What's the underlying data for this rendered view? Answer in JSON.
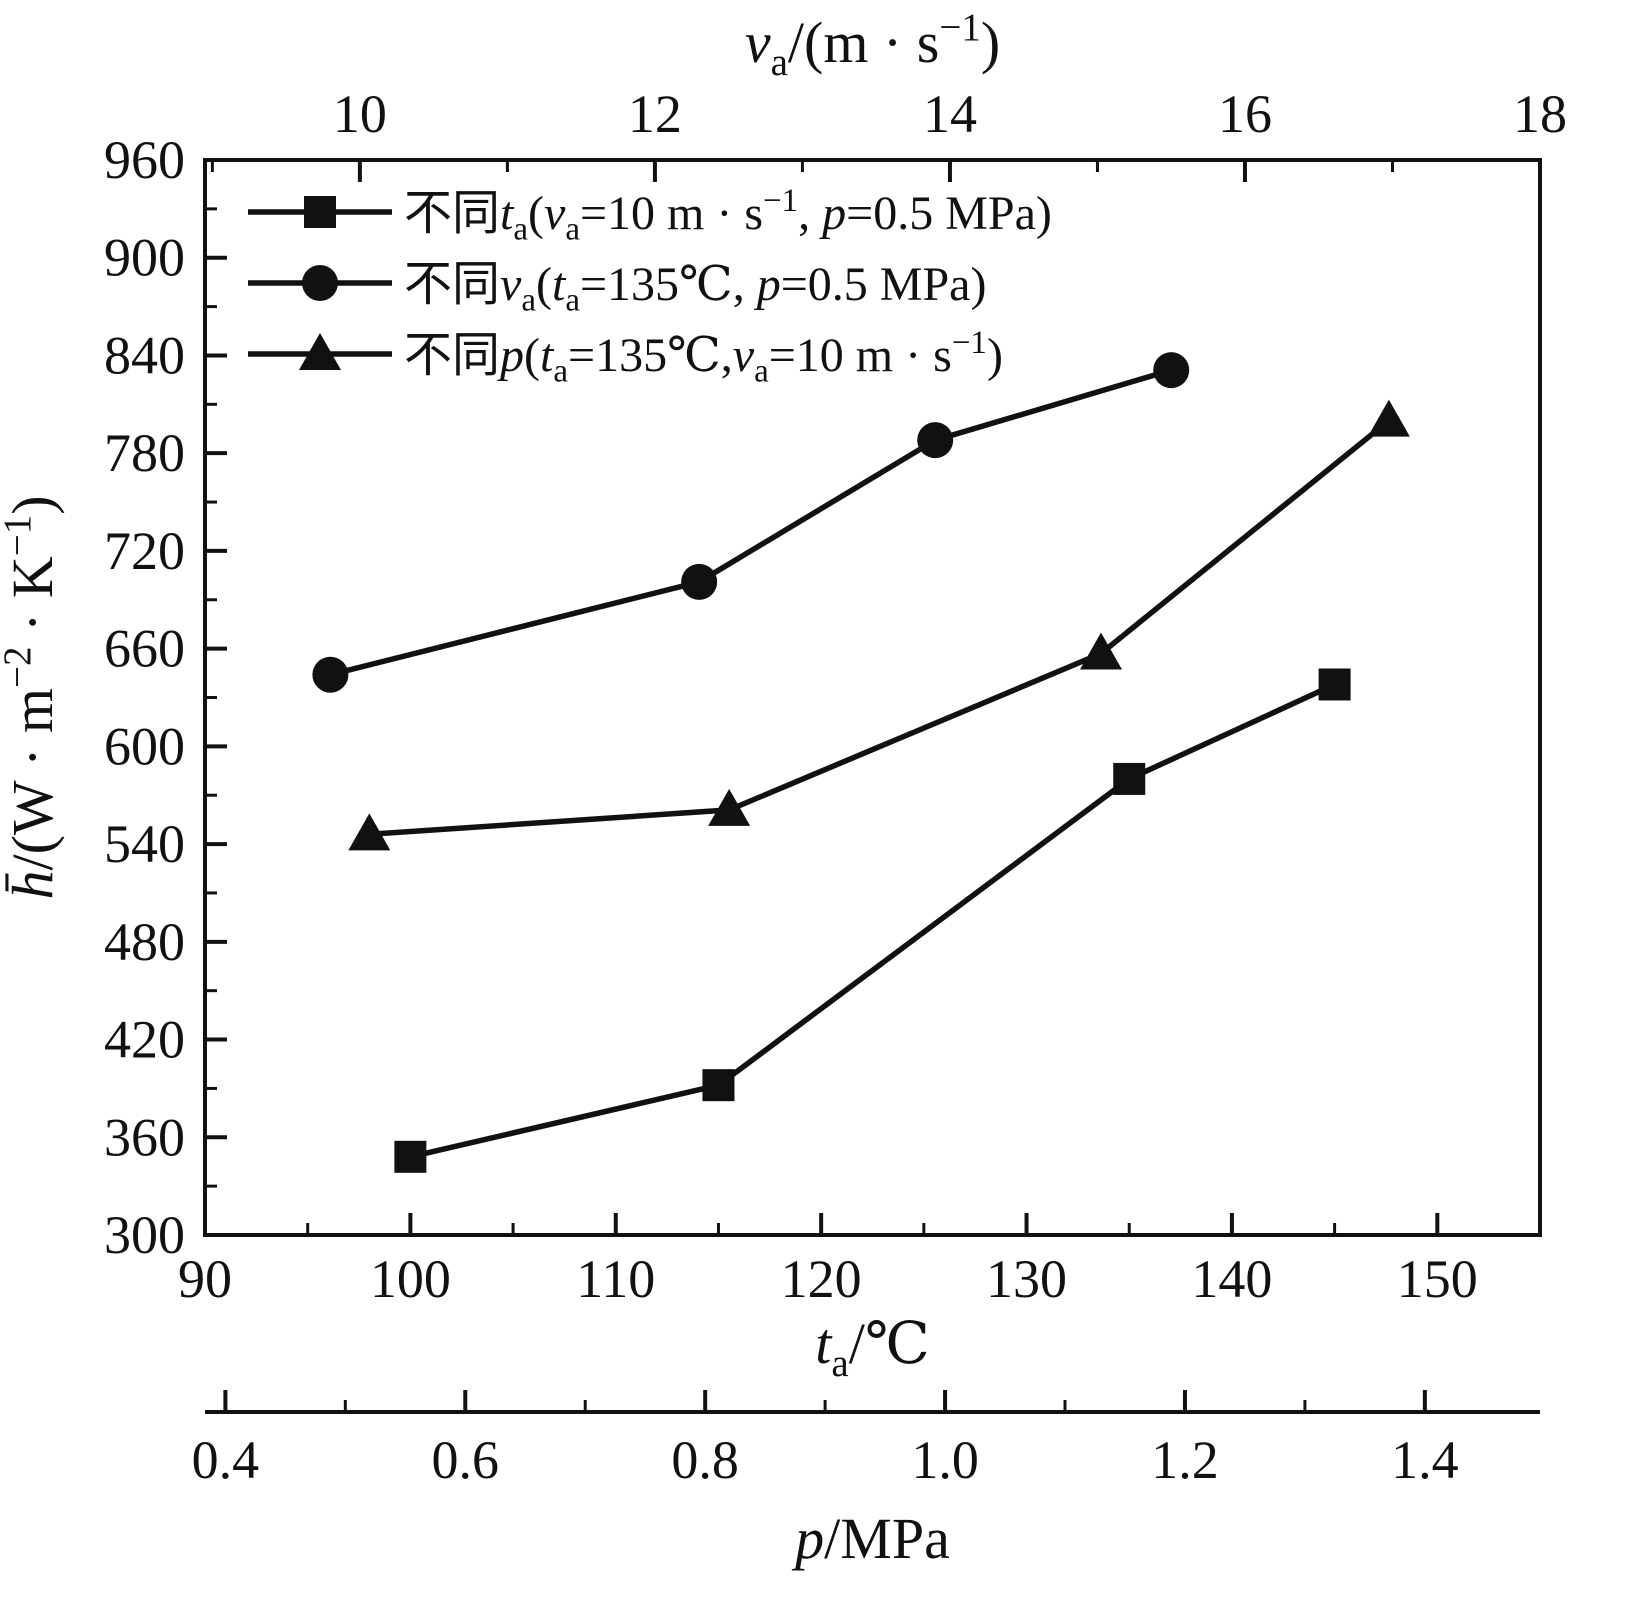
{
  "colors": {
    "foreground": "#111111",
    "background": "#ffffff"
  },
  "chart_data": {
    "type": "line",
    "title": "",
    "grid": false,
    "legend_position": "top-left-inside",
    "y_axis": {
      "label_text": "h̄/(W · m−2 · K−1)",
      "label_segments": [
        {
          "text": "h̄",
          "italic": true
        },
        {
          "text": "/(W · m"
        },
        {
          "text": "−2",
          "sup": true
        },
        {
          "text": " · K"
        },
        {
          "text": "−1",
          "sup": true
        },
        {
          "text": ")"
        }
      ],
      "range": [
        300,
        960
      ],
      "ticks": [
        300,
        360,
        420,
        480,
        540,
        600,
        660,
        720,
        780,
        840,
        900,
        960
      ],
      "tick_labels": [
        "300",
        "360",
        "420",
        "480",
        "540",
        "600",
        "660",
        "720",
        "780",
        "840",
        "900",
        "960"
      ],
      "minor_ticks": [
        330,
        390,
        450,
        510,
        570,
        630,
        690,
        750,
        810,
        870,
        930
      ]
    },
    "x_axes": {
      "bottom": {
        "label_text": "ta/℃",
        "label_segments": [
          {
            "text": "t",
            "italic": true
          },
          {
            "text": "a",
            "sub": true
          },
          {
            "text": "/℃"
          }
        ],
        "range": [
          90,
          155
        ],
        "ticks": [
          90,
          100,
          110,
          120,
          130,
          140,
          150
        ],
        "tick_labels": [
          "90",
          "100",
          "110",
          "120",
          "130",
          "140",
          "150"
        ],
        "minor_ticks": [
          95,
          105,
          115,
          125,
          135,
          145,
          155
        ]
      },
      "top": {
        "label_text": "va/(m · s−1)",
        "label_segments": [
          {
            "text": "v",
            "italic": true
          },
          {
            "text": "a",
            "sub": true
          },
          {
            "text": "/(m · s"
          },
          {
            "text": "−1",
            "sup": true
          },
          {
            "text": ")"
          }
        ],
        "range": [
          8.95,
          18
        ],
        "ticks": [
          10,
          12,
          14,
          16,
          18
        ],
        "tick_labels": [
          "10",
          "12",
          "14",
          "16",
          "18"
        ],
        "minor_ticks": [
          9,
          11,
          13,
          15,
          17
        ]
      },
      "p": {
        "label_text": "p/MPa",
        "label_segments": [
          {
            "text": "p",
            "italic": true
          },
          {
            "text": "/MPa"
          }
        ],
        "range": [
          0.383,
          1.496
        ],
        "ticks": [
          0.4,
          0.6,
          0.8,
          1.0,
          1.2,
          1.4
        ],
        "tick_labels": [
          "0.4",
          "0.6",
          "0.8",
          "1.0",
          "1.2",
          "1.4"
        ],
        "minor_ticks": [
          0.5,
          0.7,
          0.9,
          1.1,
          1.3
        ]
      }
    },
    "series": [
      {
        "name": "不同ta(va=10 m·s−1, p=0.5 MPa)",
        "marker": "square",
        "x_axis": "bottom",
        "legend_segments": [
          {
            "text": "不同"
          },
          {
            "text": "t",
            "italic": true
          },
          {
            "text": "a",
            "sub": true
          },
          {
            "text": "("
          },
          {
            "text": "v",
            "italic": true
          },
          {
            "text": "a",
            "sub": true
          },
          {
            "text": "=10 m · s"
          },
          {
            "text": "−1",
            "sup": true
          },
          {
            "text": ", "
          },
          {
            "text": "p",
            "italic": true
          },
          {
            "text": "=0.5 MPa)"
          }
        ],
        "points": [
          [
            100,
            348
          ],
          [
            115,
            392
          ],
          [
            135,
            580
          ],
          [
            145,
            638
          ]
        ]
      },
      {
        "name": "不同va(ta=135℃, p=0.5 MPa)",
        "marker": "circle",
        "x_axis": "top",
        "legend_segments": [
          {
            "text": "不同"
          },
          {
            "text": "v",
            "italic": true
          },
          {
            "text": "a",
            "sub": true
          },
          {
            "text": "("
          },
          {
            "text": "t",
            "italic": true
          },
          {
            "text": "a",
            "sub": true
          },
          {
            "text": "=135℃, "
          },
          {
            "text": "p",
            "italic": true
          },
          {
            "text": "=0.5 MPa)"
          }
        ],
        "points": [
          [
            9.8,
            644
          ],
          [
            12.3,
            701
          ],
          [
            13.9,
            788
          ],
          [
            15.5,
            831
          ]
        ]
      },
      {
        "name": "不同p(ta=135℃,va=10 m·s−1)",
        "marker": "triangle",
        "x_axis": "p",
        "legend_segments": [
          {
            "text": "不同"
          },
          {
            "text": "p",
            "italic": true
          },
          {
            "text": "("
          },
          {
            "text": "t",
            "italic": true
          },
          {
            "text": "a",
            "sub": true
          },
          {
            "text": "=135℃,"
          },
          {
            "text": "v",
            "italic": true
          },
          {
            "text": "a",
            "sub": true
          },
          {
            "text": "=10 m · s"
          },
          {
            "text": "−1",
            "sup": true
          },
          {
            "text": ")"
          }
        ],
        "points": [
          [
            0.52,
            546
          ],
          [
            0.82,
            561
          ],
          [
            1.13,
            657
          ],
          [
            1.37,
            800
          ]
        ]
      }
    ]
  }
}
